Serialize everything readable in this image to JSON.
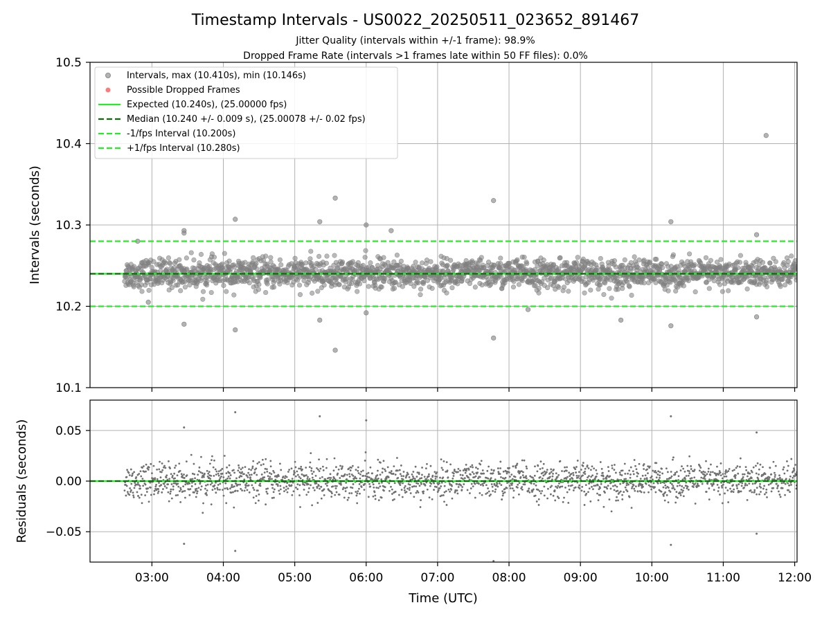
{
  "chart_data": [
    {
      "type": "scatter",
      "title": "Timestamp Intervals - US0022_20250511_023652_891467",
      "subtitle_lines": [
        "Jitter Quality (intervals within +/-1 frame): 98.9%",
        "Dropped Frame Rate (intervals >1 frames late within 50 FF files): 0.0%"
      ],
      "xlabel": "",
      "ylabel": "Intervals (seconds)",
      "xlim": [
        "02:08",
        "12:02"
      ],
      "ylim": [
        10.1,
        10.5
      ],
      "yticks": [
        "10.1",
        "10.2",
        "10.3",
        "10.4",
        "10.5"
      ],
      "grid": true,
      "legend_position": "top-left",
      "legend": [
        {
          "label": "Intervals, max (10.410s), min (10.146s)",
          "kind": "marker",
          "color": "#8c8c8c"
        },
        {
          "label": "Possible Dropped Frames",
          "kind": "marker",
          "color": "#ff6b6b"
        },
        {
          "label": "Expected (10.240s), (25.00000 fps)",
          "kind": "solid",
          "color": "#22ee22"
        },
        {
          "label": "Median (10.240 +/- 0.009 s), (25.00078 +/- 0.02 fps)",
          "kind": "dashed",
          "color": "#0b6b0b"
        },
        {
          "label": "-1/fps Interval (10.200s)",
          "kind": "dashed",
          "color": "#22ee22"
        },
        {
          "label": "+1/fps Interval (10.280s)",
          "kind": "dashed",
          "color": "#22ee22"
        }
      ],
      "reference_lines": [
        {
          "name": "Expected",
          "y": 10.24,
          "style": "solid",
          "color": "#22ee22"
        },
        {
          "name": "Median",
          "y": 10.24,
          "style": "dashed",
          "color": "#0b6b0b"
        },
        {
          "name": "-1/fps",
          "y": 10.2,
          "style": "dashed",
          "color": "#22ee22"
        },
        {
          "name": "+1/fps",
          "y": 10.28,
          "style": "dashed",
          "color": "#22ee22"
        }
      ],
      "series": [
        {
          "name": "Intervals",
          "color": "#808080",
          "x_range": [
            "02:37",
            "12:02"
          ],
          "center": 10.24,
          "typical_spread_sd": 0.009,
          "bulk_count_estimate": 2000,
          "notable_points": [
            {
              "x": "02:48",
              "y": 10.28
            },
            {
              "x": "02:57",
              "y": 10.205
            },
            {
              "x": "03:27",
              "y": 10.293
            },
            {
              "x": "03:27",
              "y": 10.29
            },
            {
              "x": "03:27",
              "y": 10.178
            },
            {
              "x": "04:10",
              "y": 10.307
            },
            {
              "x": "04:10",
              "y": 10.171
            },
            {
              "x": "05:21",
              "y": 10.304
            },
            {
              "x": "05:21",
              "y": 10.183
            },
            {
              "x": "05:34",
              "y": 10.333
            },
            {
              "x": "05:34",
              "y": 10.146
            },
            {
              "x": "06:00",
              "y": 10.3
            },
            {
              "x": "06:00",
              "y": 10.192
            },
            {
              "x": "06:21",
              "y": 10.293
            },
            {
              "x": "07:47",
              "y": 10.33
            },
            {
              "x": "07:47",
              "y": 10.161
            },
            {
              "x": "08:16",
              "y": 10.196
            },
            {
              "x": "09:34",
              "y": 10.183
            },
            {
              "x": "10:16",
              "y": 10.304
            },
            {
              "x": "10:16",
              "y": 10.176
            },
            {
              "x": "11:36",
              "y": 10.41
            },
            {
              "x": "11:28",
              "y": 10.288
            },
            {
              "x": "11:28",
              "y": 10.187
            }
          ]
        }
      ]
    },
    {
      "type": "scatter",
      "xlabel": "Time (UTC)",
      "ylabel": "Residuals (seconds)",
      "xlim": [
        "02:08",
        "12:02"
      ],
      "ylim": [
        -0.08,
        0.08
      ],
      "yticks": [
        "−0.05",
        "0.00",
        "0.05"
      ],
      "xticks": [
        "03:00",
        "04:00",
        "05:00",
        "06:00",
        "07:00",
        "08:00",
        "09:00",
        "10:00",
        "11:00",
        "12:00"
      ],
      "grid": true,
      "reference_lines": [
        {
          "name": "Expected",
          "y": 0,
          "style": "solid",
          "color": "#22ee22"
        },
        {
          "name": "Median",
          "y": 0,
          "style": "dashed",
          "color": "#0b6b0b"
        }
      ],
      "series": [
        {
          "name": "Residuals",
          "color": "#707070",
          "x_range": [
            "02:37",
            "12:02"
          ],
          "center": 0,
          "typical_spread_sd": 0.009,
          "notable_points": [
            {
              "x": "03:27",
              "y": 0.053
            },
            {
              "x": "03:27",
              "y": -0.062
            },
            {
              "x": "04:10",
              "y": 0.068
            },
            {
              "x": "04:10",
              "y": -0.069
            },
            {
              "x": "05:21",
              "y": 0.064
            },
            {
              "x": "06:00",
              "y": 0.06
            },
            {
              "x": "07:47",
              "y": -0.079
            },
            {
              "x": "10:16",
              "y": 0.064
            },
            {
              "x": "10:16",
              "y": -0.063
            },
            {
              "x": "11:28",
              "y": 0.048
            },
            {
              "x": "11:28",
              "y": -0.052
            }
          ]
        }
      ]
    }
  ]
}
